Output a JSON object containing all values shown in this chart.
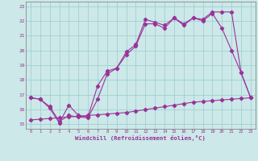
{
  "xlabel": "Windchill (Refroidissement éolien,°C)",
  "bg_color": "#cce8e8",
  "line_color": "#993399",
  "grid_color": "#99cccc",
  "xlim": [
    -0.5,
    23.5
  ],
  "ylim": [
    14.7,
    23.3
  ],
  "yticks": [
    15,
    16,
    17,
    18,
    19,
    20,
    21,
    22,
    23
  ],
  "xticks": [
    0,
    1,
    2,
    3,
    4,
    5,
    6,
    7,
    8,
    9,
    10,
    11,
    12,
    13,
    14,
    15,
    16,
    17,
    18,
    19,
    20,
    21,
    22,
    23
  ],
  "line1_x": [
    0,
    1,
    2,
    3,
    4,
    5,
    6,
    7,
    8,
    9,
    10,
    11,
    12,
    13,
    14,
    15,
    16,
    17,
    18,
    19,
    20,
    21,
    22,
    23
  ],
  "line1_y": [
    16.8,
    16.7,
    16.1,
    15.1,
    16.3,
    15.6,
    15.5,
    17.6,
    18.6,
    18.8,
    19.9,
    20.4,
    22.1,
    21.9,
    21.7,
    22.2,
    21.7,
    22.2,
    22.0,
    22.5,
    21.5,
    20.0,
    18.5,
    16.8
  ],
  "line2_x": [
    0,
    1,
    2,
    3,
    4,
    5,
    6,
    7,
    8,
    9,
    10,
    11,
    12,
    13,
    14,
    15,
    16,
    17,
    18,
    19,
    20,
    21,
    22,
    23
  ],
  "line2_y": [
    16.8,
    16.7,
    16.2,
    15.2,
    15.6,
    15.5,
    15.45,
    16.7,
    18.4,
    18.8,
    19.7,
    20.3,
    21.8,
    21.8,
    21.5,
    22.2,
    21.8,
    22.2,
    22.1,
    22.6,
    22.6,
    22.6,
    18.5,
    16.8
  ],
  "line3_x": [
    0,
    1,
    2,
    3,
    4,
    5,
    6,
    7,
    8,
    9,
    10,
    11,
    12,
    13,
    14,
    15,
    16,
    17,
    18,
    19,
    20,
    21,
    22,
    23
  ],
  "line3_y": [
    15.3,
    15.35,
    15.4,
    15.45,
    15.5,
    15.55,
    15.6,
    15.65,
    15.7,
    15.75,
    15.8,
    15.9,
    16.0,
    16.1,
    16.2,
    16.3,
    16.4,
    16.5,
    16.55,
    16.6,
    16.65,
    16.7,
    16.75,
    16.8
  ]
}
